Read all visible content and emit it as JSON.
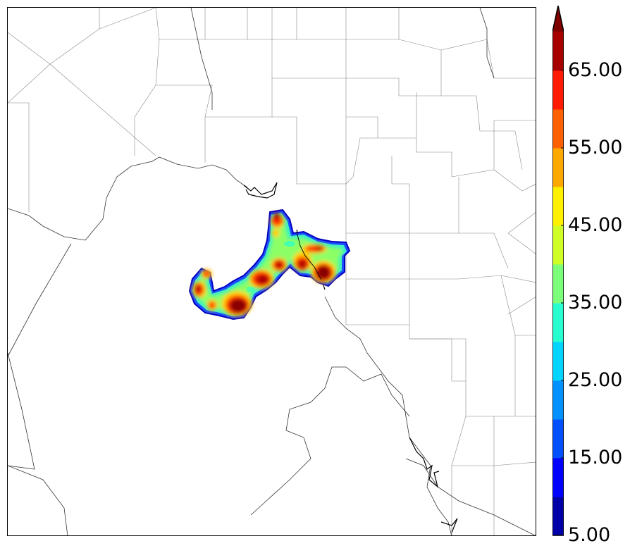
{
  "map": {
    "type": "radar-reflectivity-map",
    "region": "county and state boundaries",
    "colormap": "jet"
  },
  "colorbar": {
    "min": 5.0,
    "max": 70.0,
    "step": 5.0,
    "extend": "max",
    "labels": [
      "65.00",
      "55.00",
      "45.00",
      "35.00",
      "25.00",
      "15.00",
      "5.00"
    ],
    "colors": [
      "#0000a8",
      "#0000ff",
      "#0050ff",
      "#0090ff",
      "#00d4ff",
      "#27ffd0",
      "#7cff7a",
      "#d0ff27",
      "#fff000",
      "#ffa800",
      "#ff6000",
      "#ff1a00",
      "#a80000",
      "#800000"
    ]
  }
}
